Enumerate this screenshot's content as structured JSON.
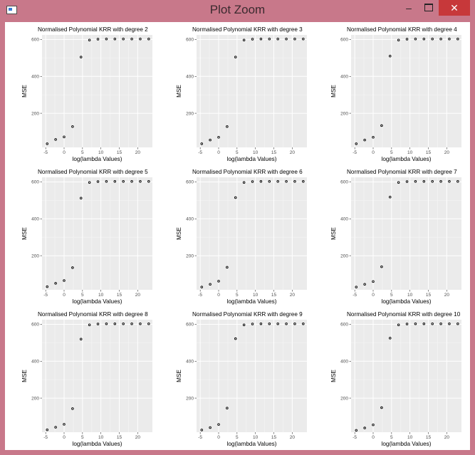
{
  "window": {
    "title": "Plot Zoom",
    "min_label": "–",
    "close_label": "✕",
    "icon": "r-plot-window-icon"
  },
  "colors": {
    "panel_bg": "#ebebeb",
    "grid_major": "#ffffff",
    "grid_minor": "#f5f5f5",
    "point": "#000000",
    "text": "#000000",
    "tick_text": "#4d4d4d",
    "close": "#c7383a",
    "frame": "#c8788a"
  },
  "chart_data": [
    {
      "type": "scatter",
      "title": "Normalised Polynomial KRR with degree 2",
      "xlabel": "log(lambda Values)",
      "ylabel": "MSE",
      "xticks": [
        -5,
        0,
        5,
        10,
        15,
        20
      ],
      "yticks": [
        200,
        400,
        600
      ],
      "xlim": [
        -6,
        24
      ],
      "ylim": [
        15,
        625
      ],
      "grid": true,
      "x": [
        -4.6,
        -2.3,
        0,
        2.3,
        4.6,
        6.9,
        9.2,
        11.5,
        13.8,
        16.1,
        18.4,
        20.7,
        23.0
      ],
      "y": [
        35,
        58,
        72,
        128,
        505,
        597,
        602,
        603,
        603,
        603,
        603,
        603,
        603
      ]
    },
    {
      "type": "scatter",
      "title": "Normalised Polynomial KRR with degree 3",
      "xlabel": "log(lambda Values)",
      "ylabel": "MSE",
      "xticks": [
        -5,
        0,
        5,
        10,
        15,
        20
      ],
      "yticks": [
        200,
        400,
        600
      ],
      "xlim": [
        -6,
        24
      ],
      "ylim": [
        15,
        625
      ],
      "grid": true,
      "x": [
        -4.6,
        -2.3,
        0,
        2.3,
        4.6,
        6.9,
        9.2,
        11.5,
        13.8,
        16.1,
        18.4,
        20.7,
        23.0
      ],
      "y": [
        35,
        55,
        70,
        128,
        505,
        597,
        602,
        603,
        603,
        603,
        603,
        603,
        603
      ]
    },
    {
      "type": "scatter",
      "title": "Normalised Polynomial KRR with degree 4",
      "xlabel": "log(lambda Values)",
      "ylabel": "MSE",
      "xticks": [
        -5,
        0,
        5,
        10,
        15,
        20
      ],
      "yticks": [
        200,
        400,
        600
      ],
      "xlim": [
        -6,
        24
      ],
      "ylim": [
        15,
        625
      ],
      "grid": true,
      "x": [
        -4.6,
        -2.3,
        0,
        2.3,
        4.6,
        6.9,
        9.2,
        11.5,
        13.8,
        16.1,
        18.4,
        20.7,
        23.0
      ],
      "y": [
        35,
        55,
        70,
        133,
        510,
        597,
        602,
        603,
        603,
        603,
        603,
        603,
        603
      ]
    },
    {
      "type": "scatter",
      "title": "Normalised Polynomial KRR with degree 5",
      "xlabel": "log(lambda Values)",
      "ylabel": "MSE",
      "xticks": [
        -5,
        0,
        5,
        10,
        15,
        20
      ],
      "yticks": [
        200,
        400,
        600
      ],
      "xlim": [
        -6,
        24
      ],
      "ylim": [
        15,
        625
      ],
      "grid": true,
      "x": [
        -4.6,
        -2.3,
        0,
        2.3,
        4.6,
        6.9,
        9.2,
        11.5,
        13.8,
        16.1,
        18.4,
        20.7,
        23.0
      ],
      "y": [
        32,
        50,
        65,
        135,
        512,
        597,
        602,
        603,
        603,
        603,
        603,
        603,
        603
      ]
    },
    {
      "type": "scatter",
      "title": "Normalised Polynomial KRR with degree 6",
      "xlabel": "log(lambda Values)",
      "ylabel": "MSE",
      "xticks": [
        -5,
        0,
        5,
        10,
        15,
        20
      ],
      "yticks": [
        200,
        400,
        600
      ],
      "xlim": [
        -6,
        24
      ],
      "ylim": [
        15,
        625
      ],
      "grid": true,
      "x": [
        -4.6,
        -2.3,
        0,
        2.3,
        4.6,
        6.9,
        9.2,
        11.5,
        13.8,
        16.1,
        18.4,
        20.7,
        23.0
      ],
      "y": [
        30,
        45,
        62,
        137,
        515,
        597,
        602,
        603,
        603,
        603,
        603,
        603,
        603
      ]
    },
    {
      "type": "scatter",
      "title": "Normalised Polynomial KRR with degree 7",
      "xlabel": "log(lambda Values)",
      "ylabel": "MSE",
      "xticks": [
        -5,
        0,
        5,
        10,
        15,
        20
      ],
      "yticks": [
        200,
        400,
        600
      ],
      "xlim": [
        -6,
        24
      ],
      "ylim": [
        15,
        625
      ],
      "grid": true,
      "x": [
        -4.6,
        -2.3,
        0,
        2.3,
        4.6,
        6.9,
        9.2,
        11.5,
        13.8,
        16.1,
        18.4,
        20.7,
        23.0
      ],
      "y": [
        30,
        45,
        60,
        140,
        518,
        597,
        602,
        603,
        603,
        603,
        603,
        603,
        603
      ]
    },
    {
      "type": "scatter",
      "title": "Normalised Polynomial KRR with degree 8",
      "xlabel": "log(lambda Values)",
      "ylabel": "MSE",
      "xticks": [
        -5,
        0,
        5,
        10,
        15,
        20
      ],
      "yticks": [
        200,
        400,
        600
      ],
      "xlim": [
        -6,
        24
      ],
      "ylim": [
        15,
        625
      ],
      "grid": true,
      "x": [
        -4.6,
        -2.3,
        0,
        2.3,
        4.6,
        6.9,
        9.2,
        11.5,
        13.8,
        16.1,
        18.4,
        20.7,
        23.0
      ],
      "y": [
        28,
        42,
        58,
        143,
        520,
        597,
        602,
        603,
        603,
        603,
        603,
        603,
        603
      ]
    },
    {
      "type": "scatter",
      "title": "Normalised Polynomial KRR with degree 9",
      "xlabel": "log(lambda Values)",
      "ylabel": "MSE",
      "xticks": [
        -5,
        0,
        5,
        10,
        15,
        20
      ],
      "yticks": [
        200,
        400,
        600
      ],
      "xlim": [
        -6,
        24
      ],
      "ylim": [
        15,
        625
      ],
      "grid": true,
      "x": [
        -4.6,
        -2.3,
        0,
        2.3,
        4.6,
        6.9,
        9.2,
        11.5,
        13.8,
        16.1,
        18.4,
        20.7,
        23.0
      ],
      "y": [
        27,
        40,
        57,
        146,
        522,
        597,
        602,
        603,
        603,
        603,
        603,
        603,
        603
      ]
    },
    {
      "type": "scatter",
      "title": "Normalised Polynomial KRR with degree 10",
      "xlabel": "log(lambda Values)",
      "ylabel": "MSE",
      "xticks": [
        -5,
        0,
        5,
        10,
        15,
        20
      ],
      "yticks": [
        200,
        400,
        600
      ],
      "xlim": [
        -6,
        24
      ],
      "ylim": [
        15,
        625
      ],
      "grid": true,
      "x": [
        -4.6,
        -2.3,
        0,
        2.3,
        4.6,
        6.9,
        9.2,
        11.5,
        13.8,
        16.1,
        18.4,
        20.7,
        23.0
      ],
      "y": [
        25,
        38,
        55,
        148,
        525,
        597,
        602,
        603,
        603,
        603,
        603,
        603,
        603
      ]
    }
  ]
}
